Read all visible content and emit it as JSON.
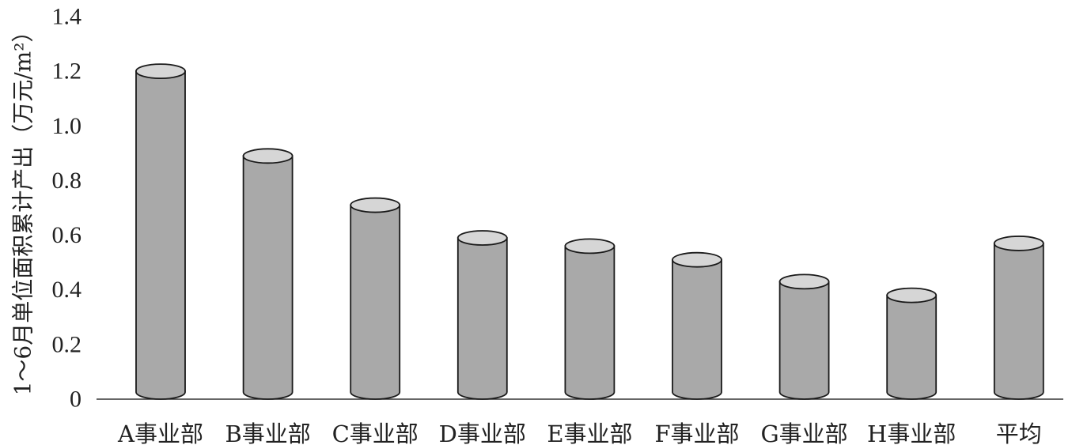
{
  "chart_data": {
    "type": "bar",
    "style": "3d-cylinder",
    "title": "",
    "xlabel": "",
    "ylabel": "1～6月单位面积累计产出（万元/m²）",
    "categories": [
      "A事业部",
      "B事业部",
      "C事业部",
      "D事业部",
      "E事业部",
      "F事业部",
      "G事业部",
      "H事业部",
      "平均"
    ],
    "values": [
      1.2,
      0.89,
      0.71,
      0.59,
      0.56,
      0.51,
      0.43,
      0.38,
      0.57
    ],
    "ylim": [
      0,
      1.4
    ],
    "yticks": [
      "0",
      "0.2",
      "0.4",
      "0.6",
      "0.8",
      "1.0",
      "1.2",
      "1.4"
    ],
    "grid": false,
    "legend": "none",
    "colors": {
      "body": "#a9a9a9",
      "top": "#d6d6d6",
      "outline": "#1a1a1a",
      "axis": "#333333"
    }
  }
}
